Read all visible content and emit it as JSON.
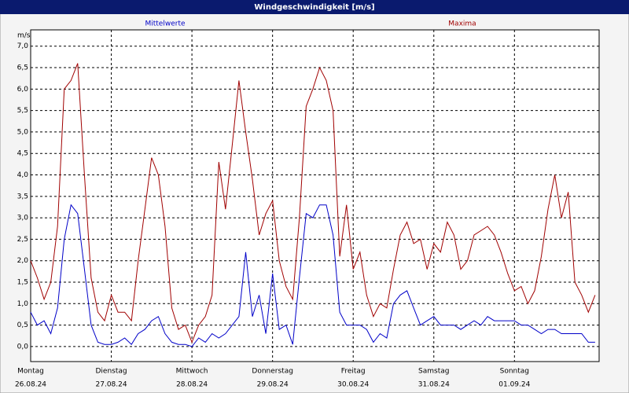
{
  "chart_data": {
    "type": "line",
    "title": "Windgeschwindigkeit [m/s]",
    "y_label": "m/s",
    "x": [
      0,
      2,
      4,
      6,
      8,
      10,
      12,
      14,
      16,
      18,
      20,
      22,
      24,
      26,
      28,
      30,
      32,
      34,
      36,
      38,
      40,
      42,
      44,
      46,
      48,
      50,
      52,
      54,
      56,
      58,
      60,
      62,
      64,
      66,
      68,
      70,
      72,
      74,
      76,
      78,
      80,
      82,
      84,
      86,
      88,
      90,
      92,
      94,
      96,
      98,
      100,
      102,
      104,
      106,
      108,
      110,
      112,
      114,
      116,
      118,
      120,
      122,
      124,
      126,
      128,
      130,
      132,
      134,
      136,
      138,
      140,
      142,
      144,
      146,
      148,
      150,
      152,
      154,
      156,
      158,
      160,
      162,
      164,
      166,
      168
    ],
    "series": [
      {
        "name": "Mittelwerte",
        "color": "#0000c8",
        "values": [
          0.8,
          0.5,
          0.6,
          0.3,
          0.9,
          2.5,
          3.3,
          3.1,
          1.8,
          0.5,
          0.1,
          0.05,
          0.05,
          0.1,
          0.2,
          0.05,
          0.3,
          0.4,
          0.6,
          0.7,
          0.3,
          0.1,
          0.05,
          0.05,
          0.0,
          0.2,
          0.1,
          0.3,
          0.2,
          0.3,
          0.5,
          0.7,
          2.2,
          0.7,
          1.2,
          0.3,
          1.7,
          0.4,
          0.5,
          0.05,
          1.6,
          3.1,
          3.0,
          3.3,
          3.3,
          2.6,
          0.8,
          0.5,
          0.5,
          0.5,
          0.4,
          0.1,
          0.3,
          0.2,
          1.0,
          1.2,
          1.3,
          0.9,
          0.5,
          0.6,
          0.7,
          0.5,
          0.5,
          0.5,
          0.4,
          0.5,
          0.6,
          0.5,
          0.7,
          0.6,
          0.6,
          0.6,
          0.6,
          0.5,
          0.5,
          0.4,
          0.3,
          0.4,
          0.4,
          0.3,
          0.3,
          0.3,
          0.3,
          0.1,
          0.1
        ]
      },
      {
        "name": "Maxima",
        "color": "#a00000",
        "values": [
          2.0,
          1.6,
          1.1,
          1.5,
          2.8,
          6.0,
          6.2,
          6.6,
          4.0,
          1.6,
          0.8,
          0.6,
          1.2,
          0.8,
          0.8,
          0.6,
          2.0,
          3.2,
          4.4,
          4.0,
          2.8,
          0.9,
          0.4,
          0.5,
          0.1,
          0.5,
          0.7,
          1.2,
          4.3,
          3.2,
          4.7,
          6.2,
          5.0,
          3.9,
          2.6,
          3.1,
          3.4,
          2.0,
          1.4,
          1.1,
          3.0,
          5.6,
          6.0,
          6.5,
          6.2,
          5.5,
          2.1,
          3.3,
          1.8,
          2.2,
          1.2,
          0.7,
          1.0,
          0.9,
          1.8,
          2.6,
          2.9,
          2.4,
          2.5,
          1.8,
          2.4,
          2.2,
          2.9,
          2.6,
          1.8,
          2.0,
          2.6,
          2.7,
          2.8,
          2.6,
          2.2,
          1.7,
          1.3,
          1.4,
          1.0,
          1.3,
          2.1,
          3.2,
          4.0,
          3.0,
          3.6,
          1.5,
          1.2,
          0.8,
          1.2
        ]
      }
    ],
    "xlim": [
      0,
      169.2
    ],
    "xticks": [
      {
        "value": 0,
        "label": "Montag",
        "date": "26.08.24"
      },
      {
        "value": 24,
        "label": "Dienstag",
        "date": "27.08.24"
      },
      {
        "value": 48,
        "label": "Mittwoch",
        "date": "28.08.24"
      },
      {
        "value": 72,
        "label": "Donnerstag",
        "date": "29.08.24"
      },
      {
        "value": 96,
        "label": "Freitag",
        "date": "30.08.24"
      },
      {
        "value": 120,
        "label": "Samstag",
        "date": "31.08.24"
      },
      {
        "value": 144,
        "label": "Sonntag",
        "date": "01.09.24"
      }
    ],
    "ylim": [
      -0.35,
      7.38
    ],
    "yticks": [
      {
        "value": 0,
        "label": "0,0"
      },
      {
        "value": 0.5,
        "label": "0,5"
      },
      {
        "value": 1,
        "label": "1,0"
      },
      {
        "value": 1.5,
        "label": "1,5"
      },
      {
        "value": 2,
        "label": "2,0"
      },
      {
        "value": 2.5,
        "label": "2,5"
      },
      {
        "value": 3,
        "label": "3,0"
      },
      {
        "value": 3.5,
        "label": "3,5"
      },
      {
        "value": 4,
        "label": "4,0"
      },
      {
        "value": 4.5,
        "label": "4,5"
      },
      {
        "value": 5,
        "label": "5,0"
      },
      {
        "value": 5.5,
        "label": "5,5"
      },
      {
        "value": 6,
        "label": "6,0"
      },
      {
        "value": 6.5,
        "label": "6,5"
      },
      {
        "value": 7,
        "label": "7,0"
      }
    ],
    "grid": true
  }
}
